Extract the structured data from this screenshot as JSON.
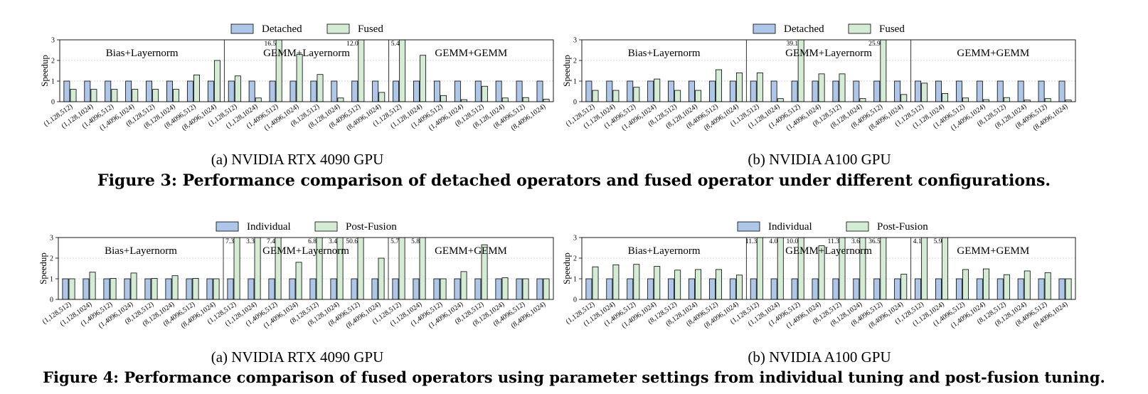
{
  "configs": [
    "(1,128,512)",
    "(1,128,1024)",
    "(1,4096,512)",
    "(1,4096,1024)",
    "(8,128,512)",
    "(8,128,1024)",
    "(8,4096,512)",
    "(8,4096,1024)"
  ],
  "colors": {
    "series_a": "#aec7e8",
    "series_b": "#d5ecd4",
    "grid": "#c8c8c8"
  },
  "figures": [
    {
      "caption": "Figure 3: Performance comparison of detached operators and fused operator under different configurations.",
      "legend": [
        "Detached",
        "Fused"
      ]
    },
    {
      "caption": "Figure 4: Performance comparison of fused operators using parameter settings from individual tuning and post-fusion tuning.",
      "legend": [
        "Individual",
        "Post-Fusion"
      ]
    }
  ],
  "subcaptions": [
    "(a) NVIDIA RTX 4090 GPU",
    "(b) NVIDIA A100 GPU"
  ],
  "chart_data": [
    {
      "id": "fig3a",
      "type": "bar",
      "figure": 0,
      "subcaption": 0,
      "ylabel": "Speedup",
      "ylim": [
        0,
        3
      ],
      "yticks": [
        0,
        1,
        2,
        3
      ],
      "grid": true,
      "series_names": [
        "Detached",
        "Fused"
      ],
      "panels": [
        {
          "title": "Bias+Layernorm",
          "a": [
            1,
            1,
            1,
            1,
            1,
            1,
            1,
            1
          ],
          "b": [
            0.6,
            0.6,
            0.6,
            0.6,
            0.6,
            0.6,
            1.3,
            2.0
          ],
          "labels": []
        },
        {
          "title": "GEMM+Layernorm",
          "a": [
            1,
            1,
            1,
            1,
            1,
            1,
            1,
            1
          ],
          "b": [
            1.25,
            0.18,
            16.5,
            2.3,
            1.32,
            0.18,
            12.0,
            0.45
          ],
          "labels": [
            {
              "i": 2,
              "t": "16.5"
            },
            {
              "i": 6,
              "t": "12.0"
            }
          ]
        },
        {
          "title": "GEMM+GEMM",
          "a": [
            1,
            1,
            1,
            1,
            1,
            1,
            1,
            1
          ],
          "b": [
            5.4,
            2.25,
            0.3,
            0.1,
            0.75,
            0.18,
            0.2,
            0.12
          ],
          "labels": [
            {
              "i": 0,
              "t": "5.4"
            }
          ]
        }
      ]
    },
    {
      "id": "fig3b",
      "type": "bar",
      "figure": 0,
      "subcaption": 1,
      "ylabel": "Speedup",
      "ylim": [
        0,
        3
      ],
      "yticks": [
        0,
        1,
        2,
        3
      ],
      "grid": true,
      "series_names": [
        "Detached",
        "Fused"
      ],
      "panels": [
        {
          "title": "Bias+Layernorm",
          "a": [
            1,
            1,
            1,
            1,
            1,
            1,
            1,
            1
          ],
          "b": [
            0.55,
            0.55,
            0.7,
            1.1,
            0.55,
            0.55,
            1.55,
            1.4
          ],
          "labels": []
        },
        {
          "title": "GEMM+Layernorm",
          "a": [
            1,
            1,
            1,
            1,
            1,
            1,
            1,
            1
          ],
          "b": [
            1.4,
            0.15,
            39.1,
            1.35,
            1.35,
            0.15,
            25.9,
            0.35
          ],
          "labels": [
            {
              "i": 2,
              "t": "39.1"
            },
            {
              "i": 6,
              "t": "25.9"
            }
          ]
        },
        {
          "title": "GEMM+GEMM",
          "a": [
            1,
            1,
            1,
            1,
            1,
            1,
            1,
            1
          ],
          "b": [
            0.9,
            0.4,
            0.18,
            0.1,
            0.2,
            0.08,
            0.15,
            0.08
          ],
          "labels": []
        }
      ]
    },
    {
      "id": "fig4a",
      "type": "bar",
      "figure": 1,
      "subcaption": 0,
      "ylabel": "Speedup",
      "ylim": [
        0,
        3
      ],
      "yticks": [
        0,
        1,
        2,
        3
      ],
      "grid": true,
      "series_names": [
        "Individual",
        "Post-Fusion"
      ],
      "panels": [
        {
          "title": "Bias+Layernorm",
          "a": [
            1,
            1,
            1,
            1,
            1,
            1,
            1,
            1
          ],
          "b": [
            1.0,
            1.32,
            1.02,
            1.28,
            1.02,
            1.15,
            1.02,
            1.0
          ],
          "labels": []
        },
        {
          "title": "GEMM+Layernorm",
          "a": [
            1,
            1,
            1,
            1,
            1,
            1,
            1,
            1
          ],
          "b": [
            7.3,
            3.3,
            7.4,
            1.8,
            6.8,
            3.4,
            50.6,
            2.0
          ],
          "labels": [
            {
              "i": 0,
              "t": "7.3"
            },
            {
              "i": 1,
              "t": "3.3"
            },
            {
              "i": 2,
              "t": "7.4"
            },
            {
              "i": 4,
              "t": "6.8"
            },
            {
              "i": 5,
              "t": "3.4"
            },
            {
              "i": 6,
              "t": "50.6"
            }
          ]
        },
        {
          "title": "GEMM+GEMM",
          "a": [
            1,
            1,
            1,
            1,
            1,
            1,
            1,
            1
          ],
          "b": [
            5.7,
            5.8,
            1.0,
            1.35,
            2.65,
            1.05,
            1.0,
            1.0
          ],
          "labels": [
            {
              "i": 0,
              "t": "5.7"
            },
            {
              "i": 1,
              "t": "5.8"
            }
          ]
        }
      ]
    },
    {
      "id": "fig4b",
      "type": "bar",
      "figure": 1,
      "subcaption": 1,
      "ylabel": "Speedup",
      "ylim": [
        0,
        3
      ],
      "yticks": [
        0,
        1,
        2,
        3
      ],
      "grid": true,
      "series_names": [
        "Individual",
        "Post-Fusion"
      ],
      "panels": [
        {
          "title": "Bias+Layernorm",
          "a": [
            1,
            1,
            1,
            1,
            1,
            1,
            1,
            1
          ],
          "b": [
            1.58,
            1.68,
            1.7,
            1.6,
            1.42,
            1.45,
            1.45,
            1.18
          ],
          "labels": []
        },
        {
          "title": "GEMM+Layernorm",
          "a": [
            1,
            1,
            1,
            1,
            1,
            1,
            1,
            1
          ],
          "b": [
            11.3,
            4.0,
            10.0,
            2.6,
            11.3,
            3.6,
            36.5,
            1.22
          ],
          "labels": [
            {
              "i": 0,
              "t": "11.3"
            },
            {
              "i": 1,
              "t": "4.0"
            },
            {
              "i": 2,
              "t": "10.0"
            },
            {
              "i": 4,
              "t": "11.3"
            },
            {
              "i": 5,
              "t": "3.6"
            },
            {
              "i": 6,
              "t": "36.5"
            }
          ]
        },
        {
          "title": "GEMM+GEMM",
          "a": [
            1,
            1,
            1,
            1,
            1,
            1,
            1,
            1
          ],
          "b": [
            4.1,
            5.9,
            1.45,
            1.48,
            1.2,
            1.38,
            1.3,
            1.0
          ],
          "labels": [
            {
              "i": 0,
              "t": "4.1"
            },
            {
              "i": 1,
              "t": "5.9"
            }
          ]
        }
      ]
    }
  ]
}
